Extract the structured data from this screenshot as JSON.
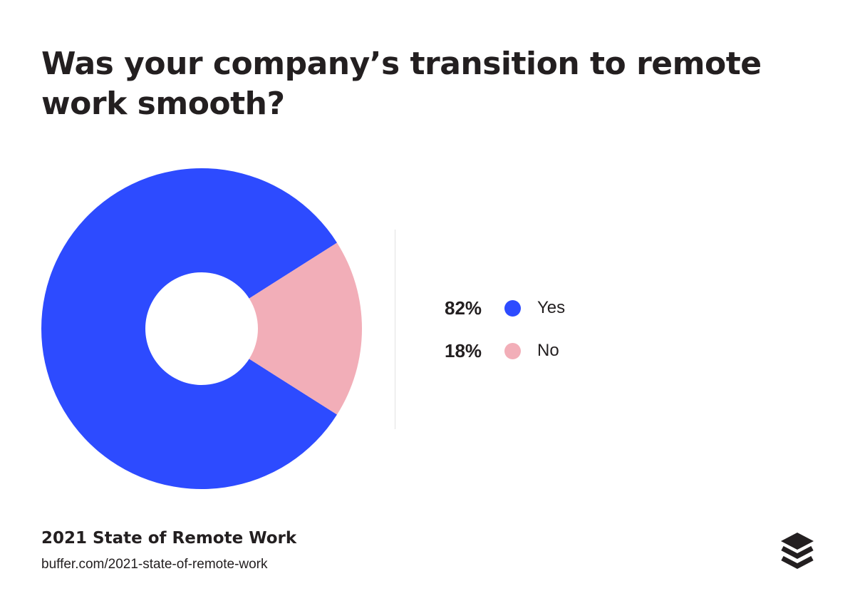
{
  "chart_data": {
    "type": "pie",
    "title": "Was your company’s transition to remote work smooth?",
    "categories": [
      "Yes",
      "No"
    ],
    "values": [
      82,
      18
    ],
    "value_labels": [
      "82%",
      "18%"
    ],
    "colors": [
      "#2d4bff",
      "#f2aeb8"
    ],
    "donut": true,
    "legend_placement": "right"
  },
  "footer": {
    "title": "2021 State of Remote Work",
    "url": "buffer.com/2021-state-of-remote-work"
  },
  "logo": {
    "name": "Buffer"
  }
}
